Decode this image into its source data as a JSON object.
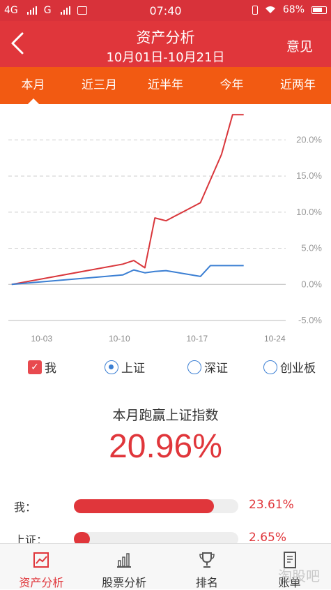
{
  "status": {
    "network1": "4G",
    "network2": "G",
    "time": "07:40",
    "battery": "68%"
  },
  "header": {
    "title": "资产分析",
    "date_range": "10月01日-10月21日",
    "feedback_label": "意见"
  },
  "tabs": [
    {
      "label": "本月",
      "active": true
    },
    {
      "label": "近三月",
      "active": false
    },
    {
      "label": "近半年",
      "active": false
    },
    {
      "label": "今年",
      "active": false
    },
    {
      "label": "近两年",
      "active": false
    }
  ],
  "chart_data": {
    "type": "line",
    "ylim": [
      -5,
      24
    ],
    "y_ticks": [
      "20.0%",
      "15.0%",
      "10.0%",
      "5.0%",
      "0.0%",
      "-5.0%"
    ],
    "y_tick_values": [
      20,
      15,
      10,
      5,
      0,
      -5
    ],
    "x_ticks": [
      "10-03",
      "10-10",
      "10-17",
      "10-24"
    ],
    "x_tick_values": [
      3,
      10,
      17,
      24
    ],
    "xlim": [
      0,
      28.5
    ],
    "series": [
      {
        "name": "我",
        "color": "#d9363b",
        "x": [
          0.3,
          10.3,
          11.3,
          12.3,
          13.2,
          14.2,
          17.3,
          19.2,
          20.2,
          21.2
        ],
        "y": [
          0.0,
          2.8,
          3.3,
          2.3,
          9.2,
          8.8,
          11.3,
          18.0,
          23.5,
          23.5
        ]
      },
      {
        "name": "上证",
        "color": "#3b7fd3",
        "x": [
          0.3,
          10.3,
          11.3,
          12.3,
          13.2,
          14.2,
          17.3,
          18.2,
          19.2,
          21.2
        ],
        "y": [
          0.0,
          1.3,
          2.0,
          1.6,
          1.8,
          1.9,
          1.1,
          2.6,
          2.6,
          2.6
        ]
      }
    ]
  },
  "legend": [
    {
      "label": "我",
      "type": "checkbox",
      "checked": true
    },
    {
      "label": "上证",
      "type": "radio",
      "checked": true
    },
    {
      "label": "深证",
      "type": "radio",
      "checked": false
    },
    {
      "label": "创业板",
      "type": "radio",
      "checked": false
    }
  ],
  "summary": {
    "headline": "本月跑赢上证指数",
    "value": "20.96%"
  },
  "comparison": [
    {
      "label": "我：",
      "value": "23.61%",
      "fraction": 0.8514
    },
    {
      "label": "上证：",
      "value": "2.65%",
      "fraction": 0.0955
    }
  ],
  "bottom_nav": [
    {
      "label": "资产分析",
      "icon": "chart-line-icon",
      "active": true
    },
    {
      "label": "股票分析",
      "icon": "bar-chart-icon",
      "active": false
    },
    {
      "label": "排名",
      "icon": "trophy-icon",
      "active": false
    },
    {
      "label": "账单",
      "icon": "document-icon",
      "active": false
    }
  ],
  "watermark": "淘股吧"
}
